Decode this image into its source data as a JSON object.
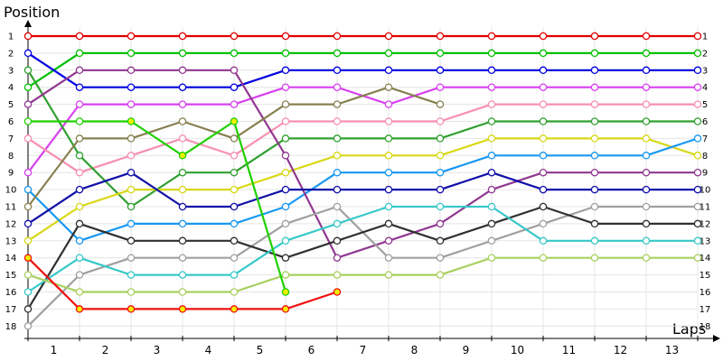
{
  "chart_data": {
    "type": "line",
    "title": "Position",
    "xlabel": "Laps",
    "ylabel": "",
    "x_tick_labels": [
      "1",
      "2",
      "3",
      "4",
      "5",
      "6",
      "7",
      "8",
      "9",
      "10",
      "11",
      "12",
      "13"
    ],
    "y_tick_labels": [
      "1",
      "2",
      "3",
      "4",
      "5",
      "6",
      "7",
      "8",
      "9",
      "10",
      "11",
      "12",
      "13",
      "14",
      "15",
      "16",
      "17",
      "18"
    ],
    "ylim": [
      1,
      18
    ],
    "y_inverted": true,
    "grid": true,
    "legend": "none",
    "series": [
      {
        "color": "#e00000",
        "start": 0,
        "values": [
          1,
          1,
          1,
          1,
          1,
          1,
          1,
          1,
          1,
          1,
          1,
          1,
          1,
          1
        ]
      },
      {
        "color": "#00c000",
        "start": 0,
        "values": [
          4,
          2,
          2,
          2,
          2,
          2,
          2,
          2,
          2,
          2,
          2,
          2,
          2,
          2
        ]
      },
      {
        "color": "#0000e0",
        "start": 0,
        "values": [
          2,
          4,
          4,
          4,
          4,
          3,
          3,
          3,
          3,
          3,
          3,
          3,
          3,
          3
        ]
      },
      {
        "color": "#d840f0",
        "start": 0,
        "values": [
          9,
          5,
          5,
          5,
          5,
          4,
          4,
          5,
          4,
          4,
          4,
          4,
          4,
          4
        ]
      },
      {
        "color": "#f890b0",
        "start": 0,
        "values": [
          7,
          9,
          8,
          7,
          8,
          6,
          6,
          6,
          6,
          5,
          5,
          5,
          5,
          5
        ]
      },
      {
        "color": "#30a030",
        "start": 0,
        "values": [
          3,
          8,
          11,
          9,
          9,
          7,
          7,
          7,
          7,
          6,
          6,
          6,
          6,
          6
        ]
      },
      {
        "color": "#d8d818",
        "start": 0,
        "values": [
          13,
          11,
          10,
          10,
          10,
          9,
          8,
          8,
          8,
          7,
          7,
          7,
          7,
          8
        ]
      },
      {
        "color": "#1898f0",
        "start": 0,
        "values": [
          10,
          13,
          12,
          12,
          12,
          11,
          9,
          9,
          9,
          8,
          8,
          8,
          8,
          7
        ]
      },
      {
        "color": "#903890",
        "start": 0,
        "values": [
          5,
          3,
          3,
          3,
          3,
          8,
          14,
          13,
          12,
          10,
          9,
          9,
          9,
          9
        ]
      },
      {
        "color": "#1010a8",
        "start": 0,
        "values": [
          12,
          10,
          9,
          11,
          11,
          10,
          10,
          10,
          10,
          9,
          10,
          10,
          10,
          10
        ]
      },
      {
        "color": "#a0a0a0",
        "start": 0,
        "values": [
          18,
          15,
          14,
          14,
          14,
          12,
          11,
          14,
          14,
          13,
          12,
          11,
          11,
          11
        ]
      },
      {
        "color": "#303030",
        "start": 0,
        "values": [
          17,
          12,
          13,
          13,
          13,
          14,
          13,
          12,
          13,
          12,
          11,
          12,
          12,
          12
        ]
      },
      {
        "color": "#38c8c8",
        "start": 0,
        "values": [
          16,
          14,
          15,
          15,
          15,
          13,
          12,
          11,
          11,
          11,
          13,
          13,
          13,
          13
        ]
      },
      {
        "color": "#a8d060",
        "start": 0,
        "values": [
          15,
          16,
          16,
          16,
          16,
          15,
          15,
          15,
          15,
          14,
          14,
          14,
          14,
          14
        ]
      },
      {
        "color": "#888050",
        "start": 0,
        "values": [
          11,
          7,
          7,
          6,
          7,
          5,
          5,
          4,
          5
        ]
      },
      {
        "color": "#20d000",
        "start": 0,
        "values": [
          6,
          6,
          6,
          8,
          6,
          16
        ],
        "highlight": [
          2,
          3,
          4,
          5
        ]
      },
      {
        "color": "#f01010",
        "start": 0,
        "values": [
          14,
          17,
          17,
          17,
          17,
          17,
          16
        ],
        "highlight": [
          0,
          1,
          2,
          3,
          4,
          5,
          6
        ]
      }
    ]
  }
}
